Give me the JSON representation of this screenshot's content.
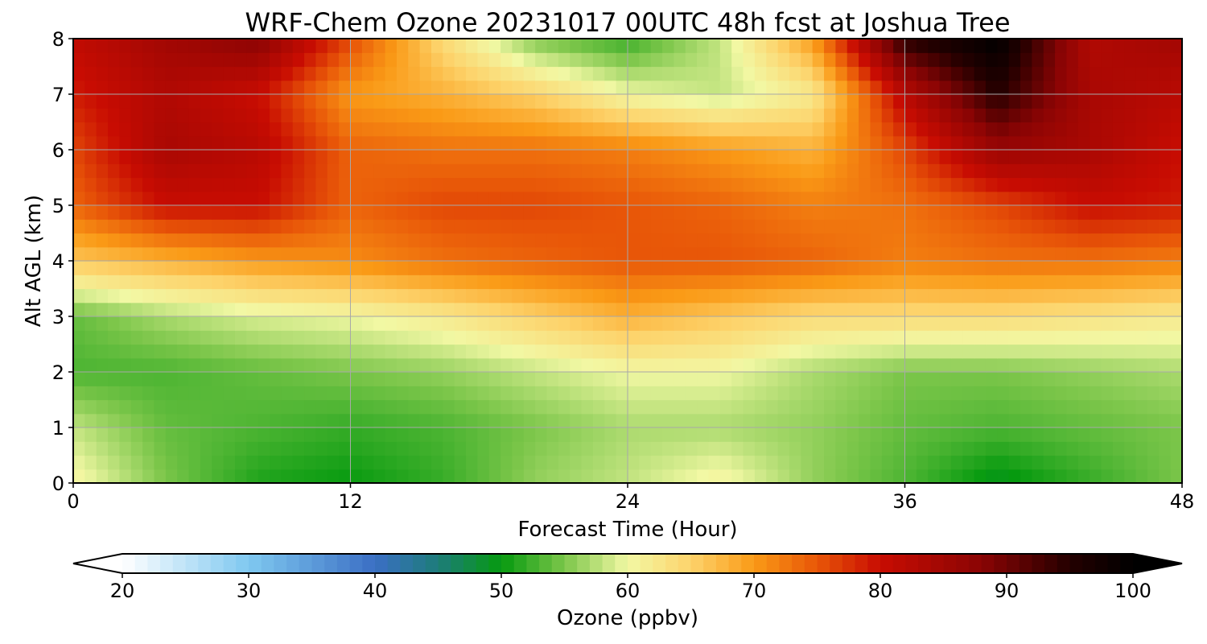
{
  "chart_data": {
    "type": "heatmap",
    "title": "WRF-Chem Ozone  20231017 00UTC 48h fcst at Joshua Tree",
    "xlabel": "Forecast Time (Hour)",
    "ylabel": "Alt AGL (km)",
    "xlim": [
      0,
      48
    ],
    "ylim": [
      0,
      8
    ],
    "x_ticks": [
      0,
      12,
      24,
      36,
      48
    ],
    "y_ticks": [
      0,
      1,
      2,
      3,
      4,
      5,
      6,
      7,
      8
    ],
    "grid": true,
    "x": [
      0,
      4,
      8,
      12,
      16,
      20,
      24,
      28,
      32,
      36,
      40,
      44,
      48
    ],
    "y": [
      0,
      1,
      2,
      3,
      4,
      5,
      6,
      7,
      8
    ],
    "z": [
      [
        61,
        55,
        51,
        50,
        52,
        56,
        58,
        61,
        56,
        53,
        49,
        52,
        55
      ],
      [
        58,
        54,
        53,
        52,
        53,
        55,
        57,
        57,
        56,
        54,
        53,
        54,
        55
      ],
      [
        53,
        53,
        54,
        55,
        56,
        58,
        60,
        60,
        57,
        55,
        55,
        56,
        57
      ],
      [
        54,
        57,
        59,
        60,
        62,
        65,
        68,
        66,
        64,
        64,
        64,
        63,
        62
      ],
      [
        66,
        68,
        70,
        71,
        73,
        74,
        75,
        75,
        74,
        72,
        73,
        73,
        72
      ],
      [
        74,
        80,
        80,
        74,
        76,
        76,
        75,
        74,
        72,
        73,
        76,
        80,
        79
      ],
      [
        76,
        84,
        82,
        74,
        73,
        73,
        72,
        70,
        68,
        76,
        86,
        84,
        80
      ],
      [
        79,
        83,
        80,
        70,
        68,
        65,
        60,
        58,
        62,
        82,
        95,
        84,
        82
      ],
      [
        81,
        85,
        88,
        76,
        64,
        55,
        52,
        58,
        70,
        95,
        100,
        83,
        85
      ]
    ],
    "colorbar": {
      "label": "Ozone  (ppbv)",
      "min": 20,
      "max": 100,
      "ticks": [
        20,
        30,
        40,
        50,
        60,
        70,
        80,
        90,
        100
      ],
      "extend": "both",
      "stops": [
        {
          "v": 20,
          "c": "#ffffff"
        },
        {
          "v": 30,
          "c": "#7fc8f0"
        },
        {
          "v": 40,
          "c": "#3b6fc4"
        },
        {
          "v": 45,
          "c": "#1d7c7a"
        },
        {
          "v": 50,
          "c": "#069a0f"
        },
        {
          "v": 55,
          "c": "#7cc64a"
        },
        {
          "v": 60,
          "c": "#f2f8a4"
        },
        {
          "v": 65,
          "c": "#fdd36b"
        },
        {
          "v": 70,
          "c": "#fa9a16"
        },
        {
          "v": 75,
          "c": "#e85608"
        },
        {
          "v": 80,
          "c": "#c80c02"
        },
        {
          "v": 88,
          "c": "#8a0404"
        },
        {
          "v": 95,
          "c": "#240000"
        },
        {
          "v": 100,
          "c": "#000000"
        }
      ]
    }
  }
}
